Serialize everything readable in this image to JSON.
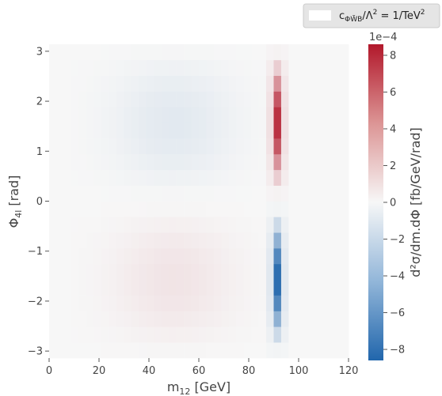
{
  "chart_data": {
    "type": "heatmap",
    "title": "",
    "xlabel": "m",
    "xlabel_sub": "12",
    "xlabel_unit": " [GeV]",
    "ylabel": "Φ",
    "ylabel_sub": "4l",
    "ylabel_unit": " [rad]",
    "xlim": [
      0,
      120
    ],
    "ylim": [
      -3.14,
      3.14
    ],
    "x_ticks": [
      0,
      20,
      40,
      60,
      80,
      100,
      120
    ],
    "x_tick_labels": [
      "0",
      "20",
      "40",
      "60",
      "80",
      "100",
      "120"
    ],
    "y_ticks": [
      -3,
      -2,
      -1,
      0,
      1,
      2,
      3
    ],
    "y_tick_labels": [
      "−3",
      "−2",
      "−1",
      "0",
      "1",
      "2",
      "3"
    ],
    "grid": false,
    "legend_position": "top-right (outside)",
    "legend_text": "c_{ΦW̃B}/Λ² = 1/TeV²",
    "colorbar": {
      "label": "d²σ/dm.dΦ [fb/GeV/rad]",
      "scale_label": "1e−4",
      "range": [
        -8.6,
        8.6
      ],
      "ticks": [
        -8,
        -6,
        -4,
        -2,
        0,
        2,
        4,
        6,
        8
      ],
      "tick_labels": [
        "−8",
        "−6",
        "−4",
        "−2",
        "0",
        "2",
        "4",
        "6",
        "8"
      ],
      "unit_multiplier": 0.0001,
      "colors": {
        "negative": "#2166ac",
        "zero": "#f7f7f7",
        "positive": "#b2182b"
      }
    },
    "x_bins": 40,
    "y_bins": 20,
    "bin_width_x": 3,
    "description_of_structure": "Antisymmetric in Φ; wide weak lobes for m12 in ~10–85 GeV (negative above Φ=0 peak ≈ −0.8e−4 near m12≈50, positive below Φ=0 peak ≈ +0.7e−4), narrow strong band at m12≈90–93 GeV (positive up to ≈ +7.5e−4 for Φ>0, negative down to ≈ −8e−4 for Φ<0)."
  }
}
